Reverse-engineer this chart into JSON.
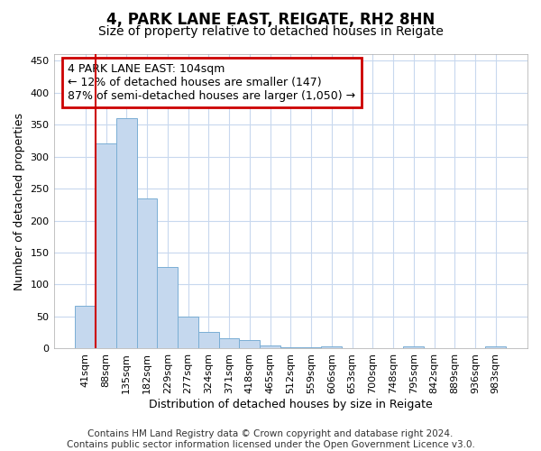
{
  "title": "4, PARK LANE EAST, REIGATE, RH2 8HN",
  "subtitle": "Size of property relative to detached houses in Reigate",
  "xlabel": "Distribution of detached houses by size in Reigate",
  "ylabel": "Number of detached properties",
  "categories": [
    "41sqm",
    "88sqm",
    "135sqm",
    "182sqm",
    "229sqm",
    "277sqm",
    "324sqm",
    "371sqm",
    "418sqm",
    "465sqm",
    "512sqm",
    "559sqm",
    "606sqm",
    "653sqm",
    "700sqm",
    "748sqm",
    "795sqm",
    "842sqm",
    "889sqm",
    "936sqm",
    "983sqm"
  ],
  "values": [
    67,
    320,
    360,
    234,
    127,
    50,
    26,
    16,
    13,
    5,
    2,
    2,
    3,
    1,
    1,
    1,
    3,
    1,
    1,
    1,
    3
  ],
  "bar_color": "#c5d8ee",
  "bar_edge_color": "#7aaed4",
  "vline_x_index": 1,
  "vline_color": "#cc0000",
  "annotation_box_text": "4 PARK LANE EAST: 104sqm\n← 12% of detached houses are smaller (147)\n87% of semi-detached houses are larger (1,050) →",
  "annotation_box_color": "#cc0000",
  "annotation_box_facecolor": "#ffffff",
  "ylim": [
    0,
    460
  ],
  "yticks": [
    0,
    50,
    100,
    150,
    200,
    250,
    300,
    350,
    400,
    450
  ],
  "grid_color": "#c8d8ee",
  "background_color": "#ffffff",
  "footer_line1": "Contains HM Land Registry data © Crown copyright and database right 2024.",
  "footer_line2": "Contains public sector information licensed under the Open Government Licence v3.0.",
  "title_fontsize": 12,
  "subtitle_fontsize": 10,
  "axis_label_fontsize": 9,
  "tick_fontsize": 8,
  "annotation_fontsize": 9,
  "footer_fontsize": 7.5
}
